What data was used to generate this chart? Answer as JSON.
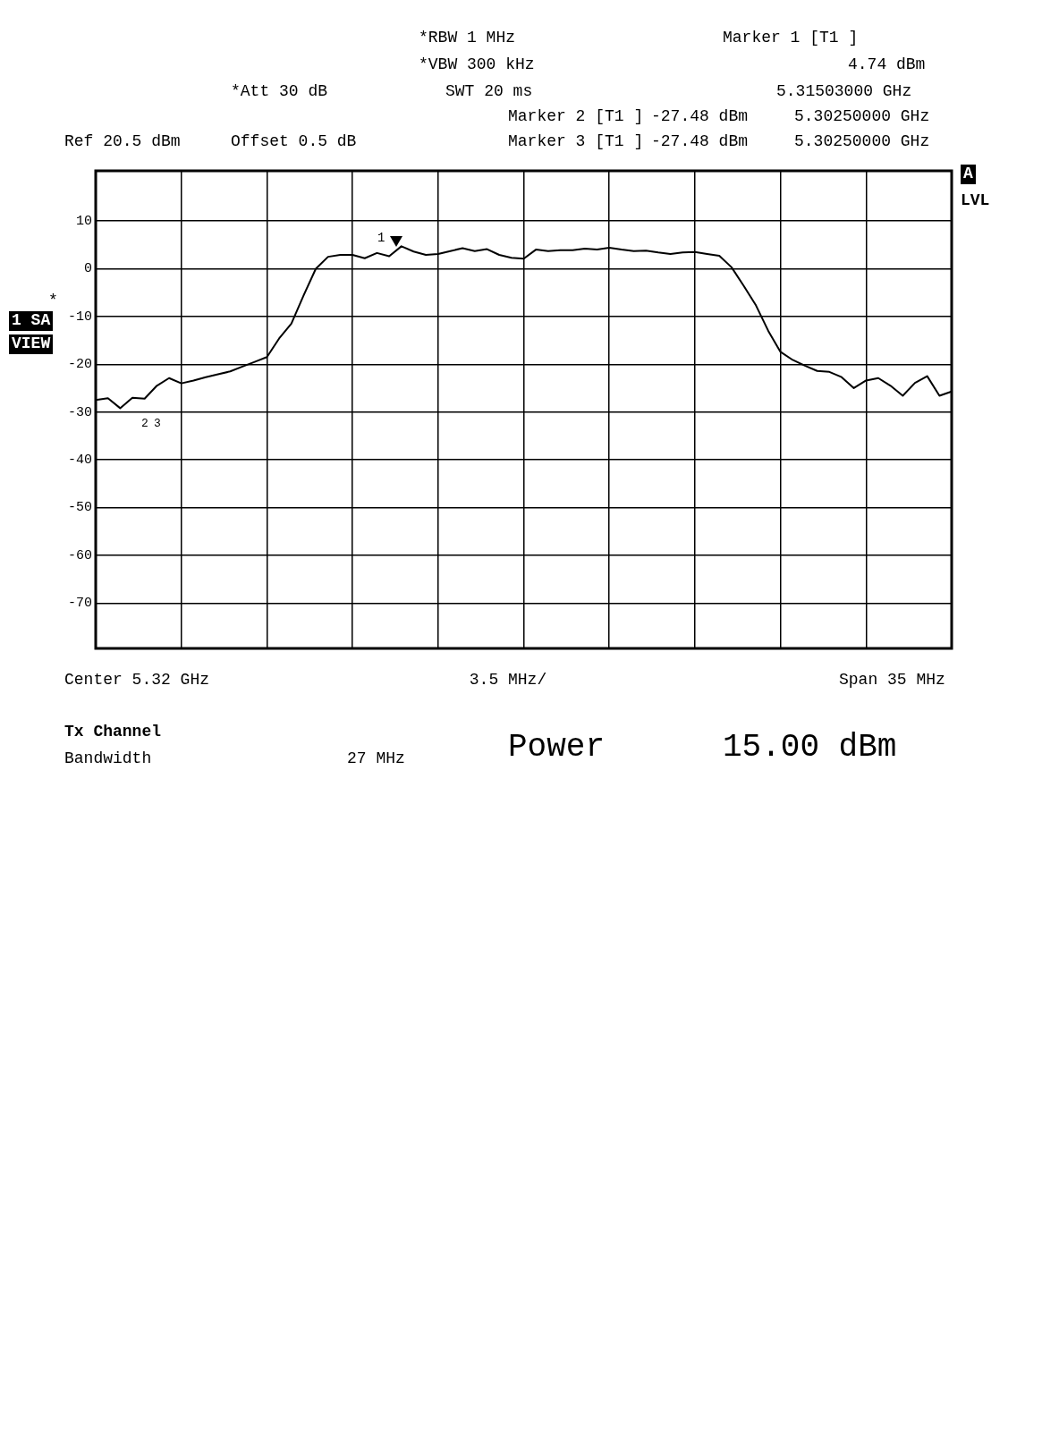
{
  "chart_data": {
    "type": "line",
    "categories": [
      null,
      null,
      null,
      null,
      null,
      null,
      null,
      null,
      null,
      null,
      null,
      null,
      null,
      null,
      null,
      null,
      null,
      null,
      null,
      null,
      null,
      null,
      null,
      null,
      null,
      null,
      null,
      null,
      null,
      null,
      null,
      null,
      null,
      null,
      null,
      null,
      null,
      null,
      null,
      null,
      null,
      null,
      null,
      null,
      null,
      null,
      null,
      null,
      null,
      null,
      null,
      null,
      null,
      null,
      null,
      null,
      null,
      null,
      null,
      null,
      null,
      null,
      null,
      null,
      null,
      null,
      null,
      null,
      null,
      null,
      null
    ],
    "ylim": [
      -79.5,
      20.5
    ],
    "yticks": [
      10,
      0,
      -10,
      -20,
      -30,
      -40,
      -50,
      -60,
      -70
    ],
    "tick_labels": "y",
    "grid": true,
    "series": [
      {
        "color": "#000000",
        "values": [
          -27.5,
          -27.1,
          -29.2,
          -27,
          -27.2,
          -24.5,
          -22.9,
          -24,
          -23.4,
          -22.7,
          -22.1,
          -21.5,
          -20.5,
          -19.5,
          -18.5,
          -14.6,
          -11.5,
          -5.6,
          0,
          2.5,
          2.9,
          2.9,
          2.2,
          3.3,
          2.6,
          4.7,
          3.6,
          2.9,
          3.1,
          3.7,
          4.3,
          3.7,
          4.1,
          2.9,
          2.3,
          2.1,
          4,
          3.7,
          3.9,
          3.9,
          4.2,
          4,
          4.4,
          4,
          3.7,
          3.8,
          3.4,
          3.1,
          3.4,
          3.5,
          3.1,
          2.7,
          0.3,
          -3.6,
          -7.7,
          -13,
          -17.4,
          -19.1,
          -20.3,
          -21.4,
          -21.6,
          -22.7,
          -25,
          -23.4,
          -22.9,
          -24.5,
          -26.6,
          -23.9,
          -22.5,
          -26.6,
          -25.7
        ]
      }
    ],
    "annotations": [
      "Ref 20.5 dBm",
      "Offset 0.5 dB",
      "*Att 30 dB",
      "*RBW 1 MHz",
      "*VBW 300 kHz",
      "SWT 20 ms",
      "Marker 1 [T1 ]",
      "4.74 dBm",
      "5.31503000 GHz",
      "Marker 2 [T1 ]",
      "-27.48 dBm",
      "5.30250000 GHz",
      "Marker 3 [T1 ]",
      "-27.48 dBm",
      "5.30250000 GHz",
      "1 SA",
      "VIEW",
      "*",
      "A",
      "LVL",
      "Center 5.32 GHz",
      "3.5 MHz/",
      "Span 35 MHz",
      "Tx Channel",
      "Bandwidth",
      "27 MHz",
      "Power",
      "15.00 dBm",
      "1",
      "2",
      "3"
    ]
  }
}
